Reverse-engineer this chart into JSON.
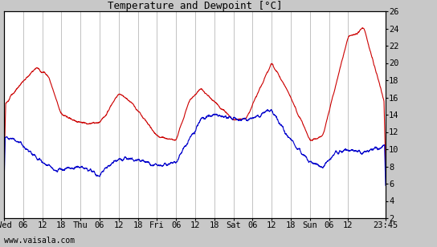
{
  "title": "Temperature and Dewpoint [°C]",
  "ylabel_right_ticks": [
    2,
    4,
    6,
    8,
    10,
    12,
    14,
    16,
    18,
    20,
    22,
    24,
    26
  ],
  "ylim": [
    2,
    26
  ],
  "x_tick_labels": [
    "Wed",
    "06",
    "12",
    "18",
    "Thu",
    "06",
    "12",
    "18",
    "Fri",
    "06",
    "12",
    "18",
    "Sat",
    "06",
    "12",
    "18",
    "Sun",
    "06",
    "12",
    "23:45"
  ],
  "x_tick_positions": [
    0,
    6,
    12,
    18,
    24,
    30,
    36,
    42,
    48,
    54,
    60,
    66,
    72,
    78,
    84,
    90,
    96,
    102,
    108,
    119.75
  ],
  "total_hours": 119.75,
  "watermark": "www.vaisala.com",
  "temp_color": "#cc0000",
  "dewpoint_color": "#0000cc",
  "background_color": "#c8c8c8",
  "plot_bg_color": "#ffffff",
  "grid_color": "#aaaaaa",
  "line_width": 0.8,
  "title_fontsize": 9,
  "tick_fontsize": 7.5,
  "watermark_fontsize": 7
}
